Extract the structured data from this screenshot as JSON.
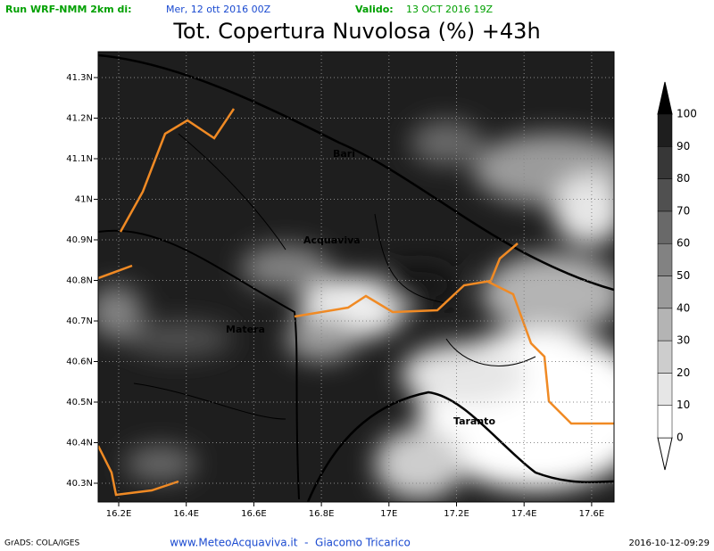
{
  "header": {
    "run_label": "Run WRF-NMM 2km di:",
    "run_date": "Mer, 12 ott 2016 00Z",
    "valid_label": "Valido:",
    "valid_date": "13 OCT 2016 19Z",
    "title": "Tot. Copertura Nuvolosa (%) +43h"
  },
  "map": {
    "lat_labels": [
      "41.3N",
      "41.2N",
      "41.1N",
      "41N",
      "40.9N",
      "40.8N",
      "40.7N",
      "40.6N",
      "40.5N",
      "40.4N",
      "40.3N"
    ],
    "lon_labels": [
      "16.2E",
      "16.4E",
      "16.6E",
      "16.8E",
      "17E",
      "17.2E",
      "17.4E",
      "17.6E"
    ],
    "places": [
      "Bari",
      "Acquaviva",
      "Matera",
      "Taranto"
    ]
  },
  "colorbar": {
    "levels": [
      0,
      10,
      20,
      30,
      40,
      50,
      60,
      70,
      80,
      90,
      100
    ],
    "colors": [
      "#ffffff",
      "#e6e6e6",
      "#cdcdcd",
      "#b4b4b4",
      "#9b9b9b",
      "#828282",
      "#696969",
      "#505050",
      "#373737",
      "#1e1e1e"
    ]
  },
  "footer": {
    "left": "GrADS: COLA/IGES",
    "center": "www.MeteoAcquaviva.it  -  Giacomo Tricarico",
    "right": "2016-10-12-09:29"
  }
}
